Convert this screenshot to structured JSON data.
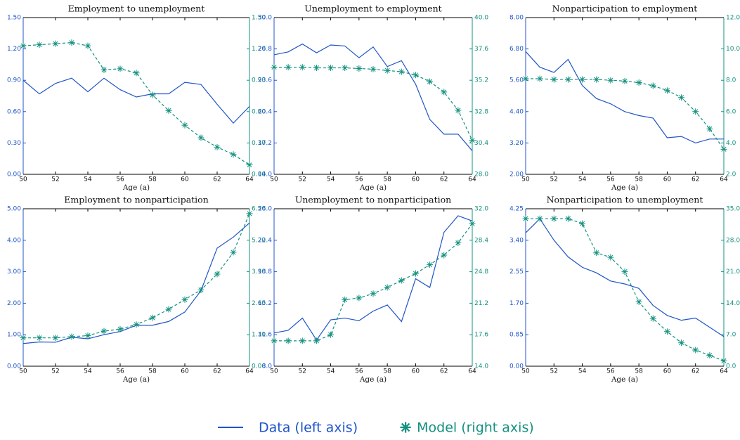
{
  "chart_data": [
    {
      "type": "line",
      "title": "Employment to unemployment",
      "xlabel": "Age (a)",
      "x": [
        50,
        51,
        52,
        53,
        54,
        55,
        56,
        57,
        58,
        59,
        60,
        61,
        62,
        63,
        64
      ],
      "xlim": [
        50,
        64
      ],
      "xticks": [
        50,
        52,
        54,
        56,
        58,
        60,
        62,
        64
      ],
      "ylim": [
        0,
        1.5
      ],
      "yticks": [
        {
          "value": 0,
          "label": "0.00"
        },
        {
          "value": 0.3,
          "label": "0.30"
        },
        {
          "value": 0.6,
          "label": "0.60"
        },
        {
          "value": 0.9,
          "label": "0.90"
        },
        {
          "value": 1.2,
          "label": "1.20"
        },
        {
          "value": 1.5,
          "label": "1.50"
        }
      ],
      "y2lim": [
        0,
        1.5
      ],
      "y2ticks": [
        {
          "value": 0,
          "label": "0.00"
        },
        {
          "value": 0.3,
          "label": "0.30"
        },
        {
          "value": 0.6,
          "label": "0.60"
        },
        {
          "value": 0.9,
          "label": "0.90"
        },
        {
          "value": 1.2,
          "label": "1.20"
        },
        {
          "value": 1.5,
          "label": "1.50"
        }
      ],
      "series": [
        {
          "name": "Data (left axis)",
          "color": "#1f55c8",
          "linestyle": "solid",
          "values": [
            0.9,
            0.77,
            0.87,
            0.92,
            0.79,
            0.92,
            0.81,
            0.74,
            0.77,
            0.77,
            0.88,
            0.86,
            0.67,
            0.49,
            0.65
          ]
        },
        {
          "name": "Model (right axis)",
          "color": "#13917f",
          "linestyle": "dashed",
          "marker": "star",
          "axis": "y2",
          "values": [
            1.23,
            1.24,
            1.25,
            1.26,
            1.23,
            1.0,
            1.01,
            0.97,
            0.76,
            0.61,
            0.47,
            0.35,
            0.26,
            0.19,
            0.09
          ]
        }
      ]
    },
    {
      "type": "line",
      "title": "Unemployment to employment",
      "xlabel": "Age (a)",
      "x": [
        50,
        51,
        52,
        53,
        54,
        55,
        56,
        57,
        58,
        59,
        60,
        61,
        62,
        63,
        64
      ],
      "xlim": [
        50,
        64
      ],
      "xticks": [
        50,
        52,
        54,
        56,
        58,
        60,
        62,
        64
      ],
      "ylim": [
        14,
        30
      ],
      "yticks": [
        {
          "value": 14,
          "label": "14.0"
        },
        17.2,
        20.4,
        23.6,
        26.8,
        {
          "value": 30,
          "label": "30.0"
        }
      ],
      "y2lim": [
        28,
        40
      ],
      "y2ticks": [
        {
          "value": 28,
          "label": "28.0"
        },
        30.4,
        32.8,
        35.2,
        37.6,
        {
          "value": 40,
          "label": "40.0"
        }
      ],
      "series": [
        {
          "color": "#1f55c8",
          "linestyle": "solid",
          "values": [
            26.2,
            26.5,
            27.3,
            26.4,
            27.2,
            27.1,
            25.9,
            27.0,
            25.0,
            25.6,
            23.2,
            19.6,
            18.1,
            18.1,
            16.4
          ]
        },
        {
          "color": "#13917f",
          "linestyle": "dashed",
          "marker": "star",
          "axis": "y2",
          "values": [
            36.2,
            36.2,
            36.2,
            36.15,
            36.15,
            36.15,
            36.1,
            36.05,
            35.95,
            35.85,
            35.6,
            35.1,
            34.3,
            32.9,
            30.6
          ]
        }
      ]
    },
    {
      "type": "line",
      "title": "Nonparticipation to employment",
      "xlabel": "Age (a)",
      "x": [
        50,
        51,
        52,
        53,
        54,
        55,
        56,
        57,
        58,
        59,
        60,
        61,
        62,
        63,
        64
      ],
      "xlim": [
        50,
        64
      ],
      "xticks": [
        50,
        52,
        54,
        56,
        58,
        60,
        62,
        64
      ],
      "ylim": [
        2,
        8
      ],
      "yticks": [
        {
          "value": 2,
          "label": "2.00"
        },
        {
          "value": 3.2,
          "label": "3.20"
        },
        {
          "value": 4.4,
          "label": "4.40"
        },
        {
          "value": 5.6,
          "label": "5.60"
        },
        {
          "value": 6.8,
          "label": "6.80"
        },
        {
          "value": 8,
          "label": "8.00"
        }
      ],
      "y2lim": [
        2,
        12
      ],
      "y2ticks": [
        {
          "value": 2,
          "label": "2.0"
        },
        {
          "value": 4,
          "label": "4.0"
        },
        {
          "value": 6,
          "label": "6.0"
        },
        {
          "value": 8,
          "label": "8.0"
        },
        {
          "value": 10,
          "label": "10.0"
        },
        {
          "value": 12,
          "label": "12.0"
        }
      ],
      "series": [
        {
          "color": "#1f55c8",
          "linestyle": "solid",
          "values": [
            6.7,
            6.1,
            5.9,
            6.4,
            5.4,
            4.9,
            4.7,
            4.4,
            4.25,
            4.15,
            3.4,
            3.45,
            3.2,
            3.35,
            3.35
          ]
        },
        {
          "color": "#13917f",
          "linestyle": "dashed",
          "marker": "star",
          "axis": "y2",
          "values": [
            8.1,
            8.1,
            8.05,
            8.05,
            8.05,
            8.05,
            8.0,
            7.95,
            7.85,
            7.65,
            7.35,
            6.9,
            6.0,
            4.9,
            3.6
          ]
        }
      ]
    },
    {
      "type": "line",
      "title": "Employment to nonparticipation",
      "xlabel": "Age (a)",
      "x": [
        50,
        51,
        52,
        53,
        54,
        55,
        56,
        57,
        58,
        59,
        60,
        61,
        62,
        63,
        64
      ],
      "xlim": [
        50,
        64
      ],
      "xticks": [
        50,
        52,
        54,
        56,
        58,
        60,
        62,
        64
      ],
      "ylim": [
        0,
        5
      ],
      "yticks": [
        {
          "value": 0,
          "label": "0.00"
        },
        {
          "value": 1,
          "label": "1.00"
        },
        {
          "value": 2,
          "label": "2.00"
        },
        {
          "value": 3,
          "label": "3.00"
        },
        {
          "value": 4,
          "label": "4.00"
        },
        {
          "value": 5,
          "label": "5.00"
        }
      ],
      "y2lim": [
        0,
        6.5
      ],
      "y2ticks": [
        {
          "value": 0,
          "label": "0.00"
        },
        {
          "value": 1.3,
          "label": "1.30"
        },
        {
          "value": 2.6,
          "label": "2.60"
        },
        {
          "value": 3.9,
          "label": "3.90"
        },
        {
          "value": 5.2,
          "label": "5.20"
        },
        {
          "value": 6.5,
          "label": "6.50"
        }
      ],
      "series": [
        {
          "color": "#1f55c8",
          "linestyle": "solid",
          "values": [
            0.72,
            0.77,
            0.76,
            0.92,
            0.87,
            1.0,
            1.1,
            1.3,
            1.3,
            1.42,
            1.72,
            2.4,
            3.75,
            4.1,
            4.55
          ]
        },
        {
          "color": "#13917f",
          "linestyle": "dashed",
          "marker": "star",
          "axis": "y2",
          "values": [
            1.17,
            1.17,
            1.17,
            1.22,
            1.26,
            1.45,
            1.53,
            1.72,
            2.0,
            2.35,
            2.75,
            3.15,
            3.8,
            4.7,
            6.3
          ]
        }
      ]
    },
    {
      "type": "line",
      "title": "Unemployment to nonparticipation",
      "xlabel": "Age (a)",
      "x": [
        50,
        51,
        52,
        53,
        54,
        55,
        56,
        57,
        58,
        59,
        60,
        61,
        62,
        63,
        64
      ],
      "xlim": [
        50,
        64
      ],
      "xticks": [
        50,
        52,
        54,
        56,
        58,
        60,
        62,
        64
      ],
      "ylim": [
        8,
        26
      ],
      "yticks": [
        {
          "value": 8,
          "label": "8.0"
        },
        11.6,
        15.2,
        18.8,
        22.4,
        {
          "value": 26,
          "label": "26.0"
        }
      ],
      "y2lim": [
        14,
        32
      ],
      "y2ticks": [
        {
          "value": 14,
          "label": "14.0"
        },
        17.6,
        21.2,
        24.8,
        28.4,
        {
          "value": 32,
          "label": "32.0"
        }
      ],
      "series": [
        {
          "color": "#1f55c8",
          "linestyle": "solid",
          "values": [
            11.8,
            12.1,
            13.5,
            11.0,
            13.3,
            13.5,
            13.2,
            14.3,
            15.0,
            13.1,
            18.0,
            17.0,
            23.3,
            25.2,
            24.6
          ]
        },
        {
          "color": "#13917f",
          "linestyle": "dashed",
          "marker": "star",
          "axis": "y2",
          "values": [
            16.9,
            16.9,
            16.9,
            16.9,
            17.6,
            21.6,
            21.8,
            22.3,
            23.0,
            23.8,
            24.6,
            25.6,
            26.7,
            28.1,
            30.3
          ]
        }
      ]
    },
    {
      "type": "line",
      "title": "Nonparticipation to unemployment",
      "xlabel": "Age (a)",
      "x": [
        50,
        51,
        52,
        53,
        54,
        55,
        56,
        57,
        58,
        59,
        60,
        61,
        62,
        63,
        64
      ],
      "xlim": [
        50,
        64
      ],
      "xticks": [
        50,
        52,
        54,
        56,
        58,
        60,
        62,
        64
      ],
      "ylim": [
        0,
        4.25
      ],
      "yticks": [
        {
          "value": 0,
          "label": "0.00"
        },
        0.85,
        {
          "value": 1.7,
          "label": "1.70"
        },
        2.55,
        {
          "value": 3.4,
          "label": "3.40"
        },
        4.25
      ],
      "y2lim": [
        0,
        35
      ],
      "y2ticks": [
        {
          "value": 0,
          "label": "0.0"
        },
        {
          "value": 7,
          "label": "7.0"
        },
        {
          "value": 14,
          "label": "14.0"
        },
        {
          "value": 21,
          "label": "21.0"
        },
        {
          "value": 28,
          "label": "28.0"
        },
        {
          "value": 35,
          "label": "35.0"
        }
      ],
      "series": [
        {
          "color": "#1f55c8",
          "linestyle": "solid",
          "values": [
            3.6,
            3.98,
            3.4,
            2.95,
            2.67,
            2.52,
            2.3,
            2.22,
            2.1,
            1.64,
            1.37,
            1.24,
            1.3,
            1.05,
            0.8
          ]
        },
        {
          "color": "#13917f",
          "linestyle": "dashed",
          "marker": "star",
          "axis": "y2",
          "values": [
            32.8,
            32.8,
            32.8,
            32.8,
            31.7,
            25.2,
            24.2,
            21.0,
            14.3,
            10.6,
            7.7,
            5.2,
            3.6,
            2.4,
            1.2
          ]
        }
      ]
    }
  ]
}
